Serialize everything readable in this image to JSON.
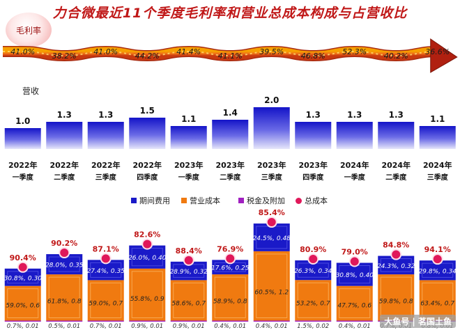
{
  "title": "力合微最近11个季度毛利率和营业总成本构成与占营收比",
  "badge": "毛利率",
  "revenue_label": "营收",
  "legend": {
    "period_expense": "期间费用",
    "operating_cost": "营业成本",
    "tax": "税金及附加",
    "total_cost": "总成本"
  },
  "colors": {
    "title": "#c01818",
    "arrow": "#f07818",
    "blue": "#1a1ac8",
    "orange": "#f07a10",
    "purple": "#a020c0",
    "pink": "#e0185a"
  },
  "watermark": "大鱼号 | 茗国土鱼",
  "chart_data": {
    "type": "bar",
    "categories": [
      [
        "2022年",
        "一季度"
      ],
      [
        "2022年",
        "二季度"
      ],
      [
        "2022年",
        "三季度"
      ],
      [
        "2022年",
        "四季度"
      ],
      [
        "2023年",
        "一季度"
      ],
      [
        "2023年",
        "二季度"
      ],
      [
        "2023年",
        "三季度"
      ],
      [
        "2023年",
        "四季度"
      ],
      [
        "2024年",
        "一季度"
      ],
      [
        "2024年",
        "二季度"
      ],
      [
        "2024年",
        "三季度"
      ]
    ],
    "gross_margin": [
      "41.0%",
      "38.2%",
      "41.0%",
      "44.2%",
      "41.4%",
      "41.1%",
      "39.5%",
      "46.8%",
      "52.3%",
      "40.2%",
      "36.6%"
    ],
    "revenue": [
      1.0,
      1.3,
      1.3,
      1.5,
      1.1,
      1.4,
      2.0,
      1.3,
      1.3,
      1.3,
      1.1
    ],
    "total_cost_ratio": [
      "90.4%",
      "90.2%",
      "87.1%",
      "82.6%",
      "88.4%",
      "76.9%",
      "85.4%",
      "80.9%",
      "79.0%",
      "84.8%",
      "94.1%"
    ],
    "period_expense": [
      [
        30.8,
        0.3
      ],
      [
        28.0,
        0.35
      ],
      [
        27.4,
        0.35
      ],
      [
        26.0,
        0.4
      ],
      [
        28.9,
        0.32
      ],
      [
        17.6,
        0.25
      ],
      [
        24.5,
        0.48
      ],
      [
        26.3,
        0.34
      ],
      [
        30.8,
        0.4
      ],
      [
        24.3,
        0.32
      ],
      [
        29.8,
        0.34
      ]
    ],
    "operating_cost": [
      [
        59.0,
        0.6
      ],
      [
        61.8,
        0.8
      ],
      [
        59.0,
        0.7
      ],
      [
        55.8,
        0.9
      ],
      [
        58.6,
        0.7
      ],
      [
        58.9,
        0.8
      ],
      [
        60.5,
        1.2
      ],
      [
        53.2,
        0.7
      ],
      [
        47.7,
        0.6
      ],
      [
        59.8,
        0.8
      ],
      [
        63.4,
        0.7
      ]
    ],
    "tax": [
      [
        0.7,
        0.01
      ],
      [
        0.5,
        0.01
      ],
      [
        0.7,
        0.01
      ],
      [
        0.9,
        0.01
      ],
      [
        0.9,
        0.01
      ],
      [
        0.4,
        0.01
      ],
      [
        0.4,
        0.01
      ],
      [
        1.5,
        0.02
      ],
      [
        0.4,
        0.01
      ],
      [
        0.7,
        0.01
      ],
      [
        0.8,
        0.01
      ]
    ],
    "series": [
      {
        "name": "期间费用"
      },
      {
        "name": "营业成本"
      },
      {
        "name": "税金及附加"
      },
      {
        "name": "总成本"
      }
    ]
  }
}
